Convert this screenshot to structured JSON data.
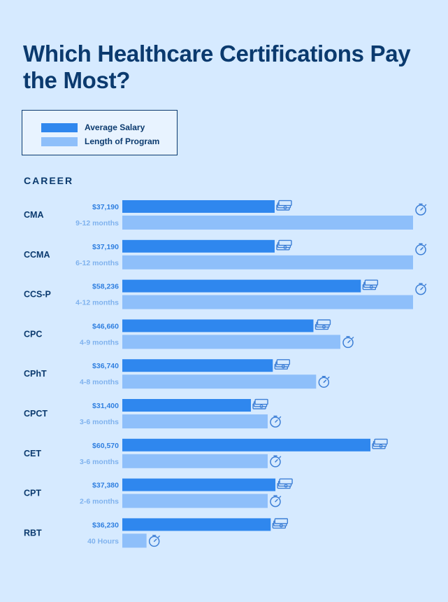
{
  "title": "Which Healthcare Certifications Pay the Most?",
  "legend": {
    "salary_label": "Average Salary",
    "program_label": "Length of Program"
  },
  "career_heading": "CAREER",
  "colors": {
    "salary": "#2f87ee",
    "program": "#8ebffa",
    "text_dark": "#0b3a6e",
    "salary_label": "#2f7fe0",
    "program_label": "#7fb2ee",
    "icon": "#3d7fd6"
  },
  "icons": {
    "salary": "money-icon",
    "program": "stopwatch-icon"
  },
  "chart_data": {
    "type": "bar",
    "categories": [
      "CMA",
      "CCMA",
      "CCS-P",
      "CPC",
      "CPhT",
      "CPCT",
      "CET",
      "CPT",
      "RBT"
    ],
    "series": [
      {
        "name": "Average Salary",
        "values": [
          37190,
          37190,
          58236,
          46660,
          36740,
          31400,
          60570,
          37380,
          36230
        ],
        "labels": [
          "$37,190",
          "$37,190",
          "$58,236",
          "$46,660",
          "$36,740",
          "$31,400",
          "$60,570",
          "$37,380",
          "$36,230"
        ]
      },
      {
        "name": "Length of Program",
        "values_months": [
          12,
          12,
          12,
          9,
          8,
          6,
          6,
          6,
          1
        ],
        "labels": [
          "9-12 months",
          "6-12 months",
          "4-12 months",
          "4-9 months",
          "4-8 months",
          "3-6 months",
          "3-6 months",
          "2-6 months",
          "40 Hours"
        ]
      }
    ],
    "salary_axis_max": 100000,
    "program_axis_max_months": 14,
    "orientation": "horizontal",
    "legend_position": "top-left",
    "grid": false
  }
}
